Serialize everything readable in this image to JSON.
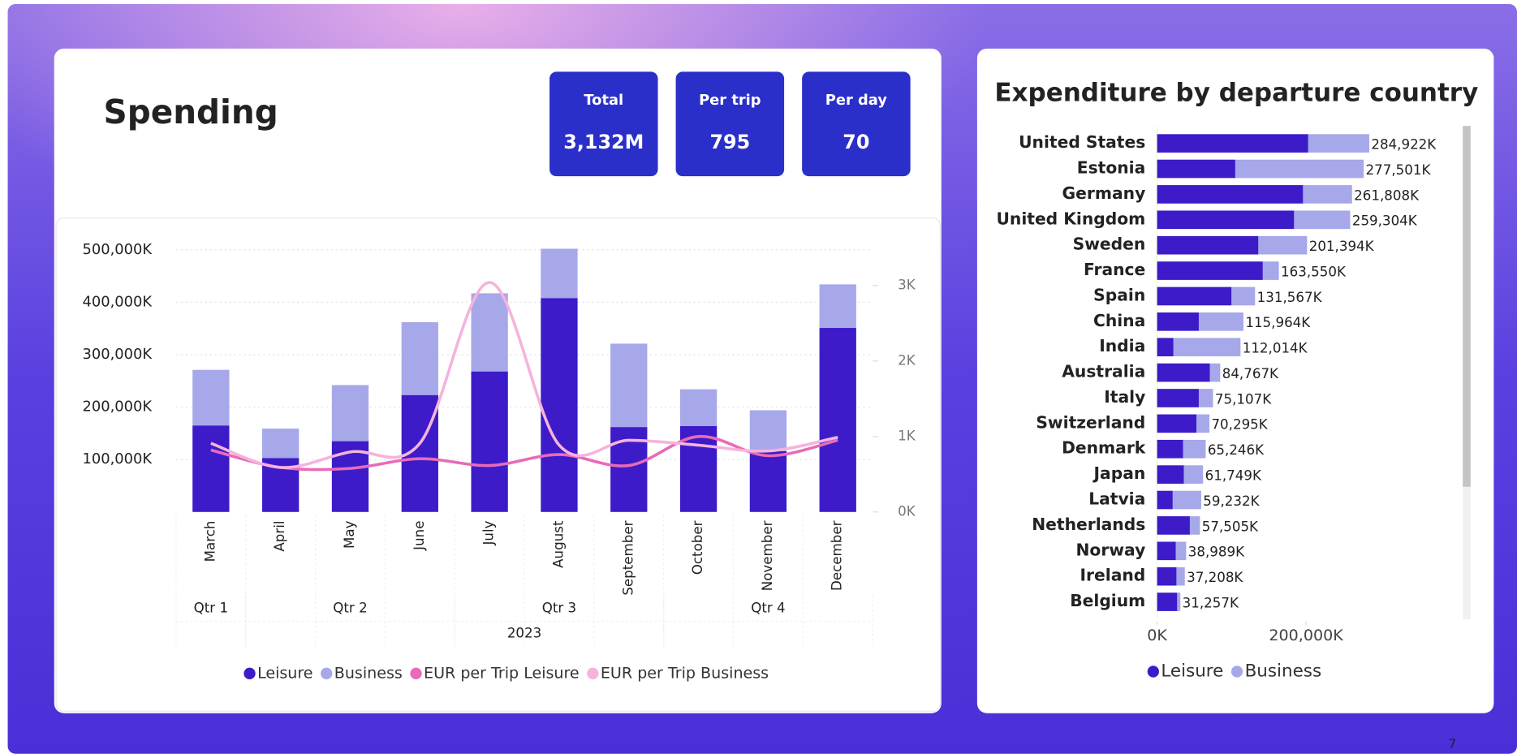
{
  "page": {
    "title": "Spending",
    "number": "7",
    "cards": [
      {
        "label": "Total",
        "value": "3,132M"
      },
      {
        "label": "Per trip",
        "value": "795"
      },
      {
        "label": "Per day",
        "value": "70"
      }
    ]
  },
  "chart_data": [
    {
      "type": "combo",
      "categories": [
        "March",
        "April",
        "May",
        "June",
        "July",
        "August",
        "September",
        "October",
        "November",
        "December"
      ],
      "x_groups": [
        {
          "label": "Qtr 1",
          "count": 1
        },
        {
          "label": "Qtr 2",
          "count": 3
        },
        {
          "label": "Qtr 3",
          "count": 3
        },
        {
          "label": "Qtr 4",
          "count": 3
        }
      ],
      "x_supergroup": "2023",
      "series": [
        {
          "name": "Leisure",
          "color": "#3d1bc8",
          "kind": "bar",
          "values": [
            165000,
            103000,
            135000,
            223000,
            268000,
            408000,
            162000,
            164000,
            116000,
            351000
          ]
        },
        {
          "name": "Business",
          "color": "#a6a8ea",
          "kind": "bar",
          "values": [
            106000,
            56000,
            107000,
            139000,
            149000,
            94000,
            159000,
            70000,
            78000,
            83000
          ]
        },
        {
          "name": "EUR per Trip Leisure",
          "color": "#e86bb8",
          "kind": "line",
          "axis": "y2",
          "values": [
            820,
            590,
            577,
            705,
            615,
            760,
            615,
            1000,
            745,
            950
          ]
        },
        {
          "name": "EUR per Trip Business",
          "color": "#f5b3dd",
          "kind": "line",
          "axis": "y2",
          "values": [
            910,
            590,
            795,
            910,
            3040,
            885,
            950,
            885,
            808,
            990
          ]
        }
      ],
      "ylim": [
        0,
        524000
      ],
      "yticks": [
        {
          "value": 100000,
          "label": "100,000K"
        },
        {
          "value": 200000,
          "label": "200,000K"
        },
        {
          "value": 300000,
          "label": "300,000K"
        },
        {
          "value": 400000,
          "label": "400,000K"
        },
        {
          "value": 500000,
          "label": "500,000K"
        }
      ],
      "y2lim": [
        0,
        3640
      ],
      "y2ticks": [
        {
          "value": 0,
          "label": "0K"
        },
        {
          "value": 1000,
          "label": "1K"
        },
        {
          "value": 2000,
          "label": "2K"
        },
        {
          "value": 3000,
          "label": "3K"
        }
      ],
      "grid": true
    },
    {
      "type": "hbar",
      "title": "Expenditure by departure country",
      "categories": [
        "United States",
        "Estonia",
        "Germany",
        "United Kingdom",
        "Sweden",
        "France",
        "Spain",
        "China",
        "India",
        "Australia",
        "Italy",
        "Switzerland",
        "Denmark",
        "Japan",
        "Latvia",
        "Netherlands",
        "Norway",
        "Ireland",
        "Belgium"
      ],
      "series": [
        {
          "name": "Leisure",
          "color": "#3d1bc8",
          "values": [
            203000,
            105000,
            196000,
            184000,
            136000,
            142000,
            100000,
            56000,
            22000,
            71000,
            56000,
            53000,
            35000,
            36000,
            21000,
            44000,
            25000,
            26000,
            27000
          ]
        },
        {
          "name": "Business",
          "color": "#a6a8ea",
          "values": [
            81922,
            172501,
            65808,
            75304,
            65394,
            21550,
            31567,
            59964,
            90014,
            13767,
            19107,
            17295,
            30246,
            25749,
            38232,
            13505,
            13989,
            11208,
            4257
          ]
        }
      ],
      "totals": [
        284922,
        277501,
        261808,
        259304,
        201394,
        163550,
        131567,
        115964,
        112014,
        84767,
        75107,
        70295,
        65246,
        61749,
        59232,
        57505,
        38989,
        37208,
        31257
      ],
      "total_labels": [
        "284,922K",
        "277,501K",
        "261,808K",
        "259,304K",
        "201,394K",
        "163,550K",
        "131,567K",
        "115,964K",
        "112,014K",
        "84,767K",
        "75,107K",
        "70,295K",
        "65,246K",
        "61,749K",
        "59,232K",
        "57,505K",
        "38,989K",
        "37,208K",
        "31,257K"
      ],
      "xlim": [
        0,
        408000
      ],
      "xticks": [
        {
          "value": 0,
          "label": "0K"
        },
        {
          "value": 200000,
          "label": "200,000K"
        }
      ]
    }
  ]
}
